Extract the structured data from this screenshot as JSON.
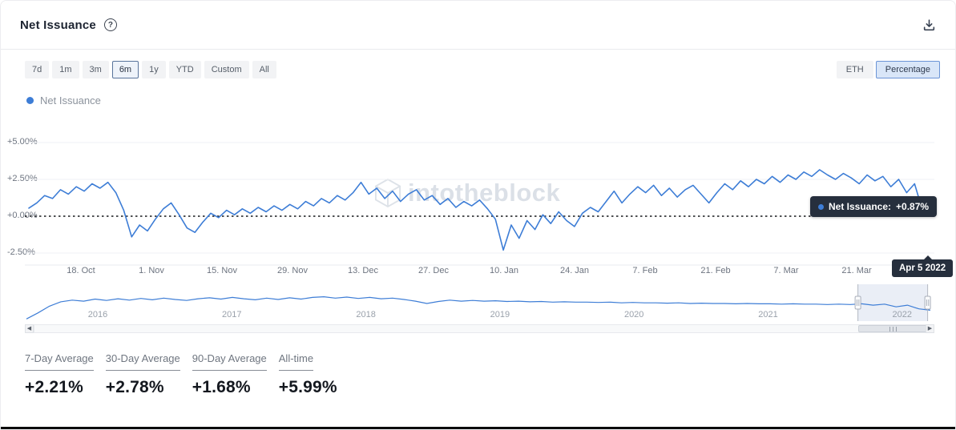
{
  "header": {
    "title": "Net Issuance"
  },
  "toolbar": {
    "ranges": [
      {
        "label": "7d",
        "active": false
      },
      {
        "label": "1m",
        "active": false
      },
      {
        "label": "3m",
        "active": false
      },
      {
        "label": "6m",
        "active": true
      },
      {
        "label": "1y",
        "active": false
      },
      {
        "label": "YTD",
        "active": false
      },
      {
        "label": "Custom",
        "active": false
      },
      {
        "label": "All",
        "active": false
      }
    ],
    "units": [
      {
        "label": "ETH",
        "active": false
      },
      {
        "label": "Percentage",
        "active": true
      }
    ]
  },
  "legend": {
    "label": "Net Issuance"
  },
  "watermark": "intotheblock",
  "colors": {
    "accent": "#3d7dd6",
    "tooltip_bg": "#262f3d",
    "selection": "rgba(91,122,182,0.13)"
  },
  "tooltip": {
    "series_label": "Net Issuance:",
    "value": "+0.87%"
  },
  "crosshair_date": "Apr 5 2022",
  "chart_data": {
    "type": "line",
    "title": "Net Issuance",
    "series_name": "Net Issuance",
    "unit": "percent",
    "legend_position": "top-left",
    "grid": "horizontal",
    "zero_line": "dotted-black",
    "ylim": [
      -3.5,
      5.5
    ],
    "y_ticks": [
      {
        "label": "+5.00%",
        "value": 5
      },
      {
        "label": "+2.50%",
        "value": 2.5
      },
      {
        "label": "+0.00%",
        "value": 0
      },
      {
        "label": "-2.50%",
        "value": -2.5
      }
    ],
    "x_ticks": [
      "18. Oct",
      "1. Nov",
      "15. Nov",
      "29. Nov",
      "13. Dec",
      "27. Dec",
      "10. Jan",
      "24. Jan",
      "7. Feb",
      "21. Feb",
      "7. Mar",
      "21. Mar"
    ],
    "values": [
      0.55,
      0.9,
      1.4,
      1.2,
      1.8,
      1.5,
      2.0,
      1.7,
      2.2,
      1.9,
      2.3,
      1.6,
      0.4,
      -1.4,
      -0.6,
      -1.0,
      -0.2,
      0.5,
      0.9,
      0.1,
      -0.8,
      -1.1,
      -0.4,
      0.2,
      -0.1,
      0.4,
      0.1,
      0.5,
      0.2,
      0.6,
      0.3,
      0.7,
      0.4,
      0.8,
      0.5,
      1.0,
      0.7,
      1.2,
      0.9,
      1.4,
      1.1,
      1.6,
      2.3,
      1.5,
      1.9,
      1.2,
      1.7,
      1.0,
      1.5,
      1.8,
      1.1,
      1.4,
      0.8,
      1.2,
      0.6,
      1.0,
      0.7,
      1.1,
      0.5,
      -0.2,
      -2.3,
      -0.6,
      -1.5,
      -0.3,
      -0.9,
      0.1,
      -0.5,
      0.3,
      -0.3,
      -0.7,
      0.2,
      0.6,
      0.3,
      1.0,
      1.7,
      0.9,
      1.5,
      2.0,
      1.6,
      2.1,
      1.4,
      1.9,
      1.3,
      1.8,
      2.1,
      1.5,
      0.9,
      1.6,
      2.2,
      1.8,
      2.4,
      2.0,
      2.5,
      2.2,
      2.7,
      2.3,
      2.8,
      2.5,
      3.0,
      2.7,
      3.15,
      2.8,
      2.5,
      2.9,
      2.6,
      2.2,
      2.8,
      2.4,
      2.7,
      2.0,
      2.5,
      1.6,
      2.2,
      0.4,
      0.87
    ],
    "last_point": {
      "date": "Apr 5 2022",
      "value": 0.87
    }
  },
  "navigator": {
    "years": [
      "2016",
      "2017",
      "2018",
      "2019",
      "2020",
      "2021",
      "2022"
    ],
    "values": [
      0.04,
      0.22,
      0.42,
      0.55,
      0.6,
      0.57,
      0.63,
      0.59,
      0.64,
      0.6,
      0.65,
      0.61,
      0.66,
      0.62,
      0.59,
      0.64,
      0.67,
      0.63,
      0.68,
      0.64,
      0.61,
      0.66,
      0.62,
      0.67,
      0.63,
      0.68,
      0.7,
      0.66,
      0.69,
      0.65,
      0.68,
      0.64,
      0.66,
      0.62,
      0.57,
      0.5,
      0.56,
      0.6,
      0.57,
      0.59,
      0.57,
      0.58,
      0.56,
      0.57,
      0.55,
      0.56,
      0.54,
      0.55,
      0.54,
      0.54,
      0.53,
      0.54,
      0.52,
      0.53,
      0.52,
      0.52,
      0.51,
      0.52,
      0.5,
      0.51,
      0.5,
      0.5,
      0.49,
      0.5,
      0.49,
      0.49,
      0.48,
      0.49,
      0.48,
      0.48,
      0.47,
      0.48,
      0.47,
      0.49,
      0.45,
      0.48,
      0.4,
      0.45,
      0.34,
      0.3
    ],
    "selection": {
      "start": 0.92,
      "end": 0.997
    }
  },
  "stats": [
    {
      "label": "7-Day Average",
      "value": "+2.21%"
    },
    {
      "label": "30-Day Average",
      "value": "+2.78%"
    },
    {
      "label": "90-Day Average",
      "value": "+1.68%"
    },
    {
      "label": "All-time",
      "value": "+5.99%"
    }
  ]
}
